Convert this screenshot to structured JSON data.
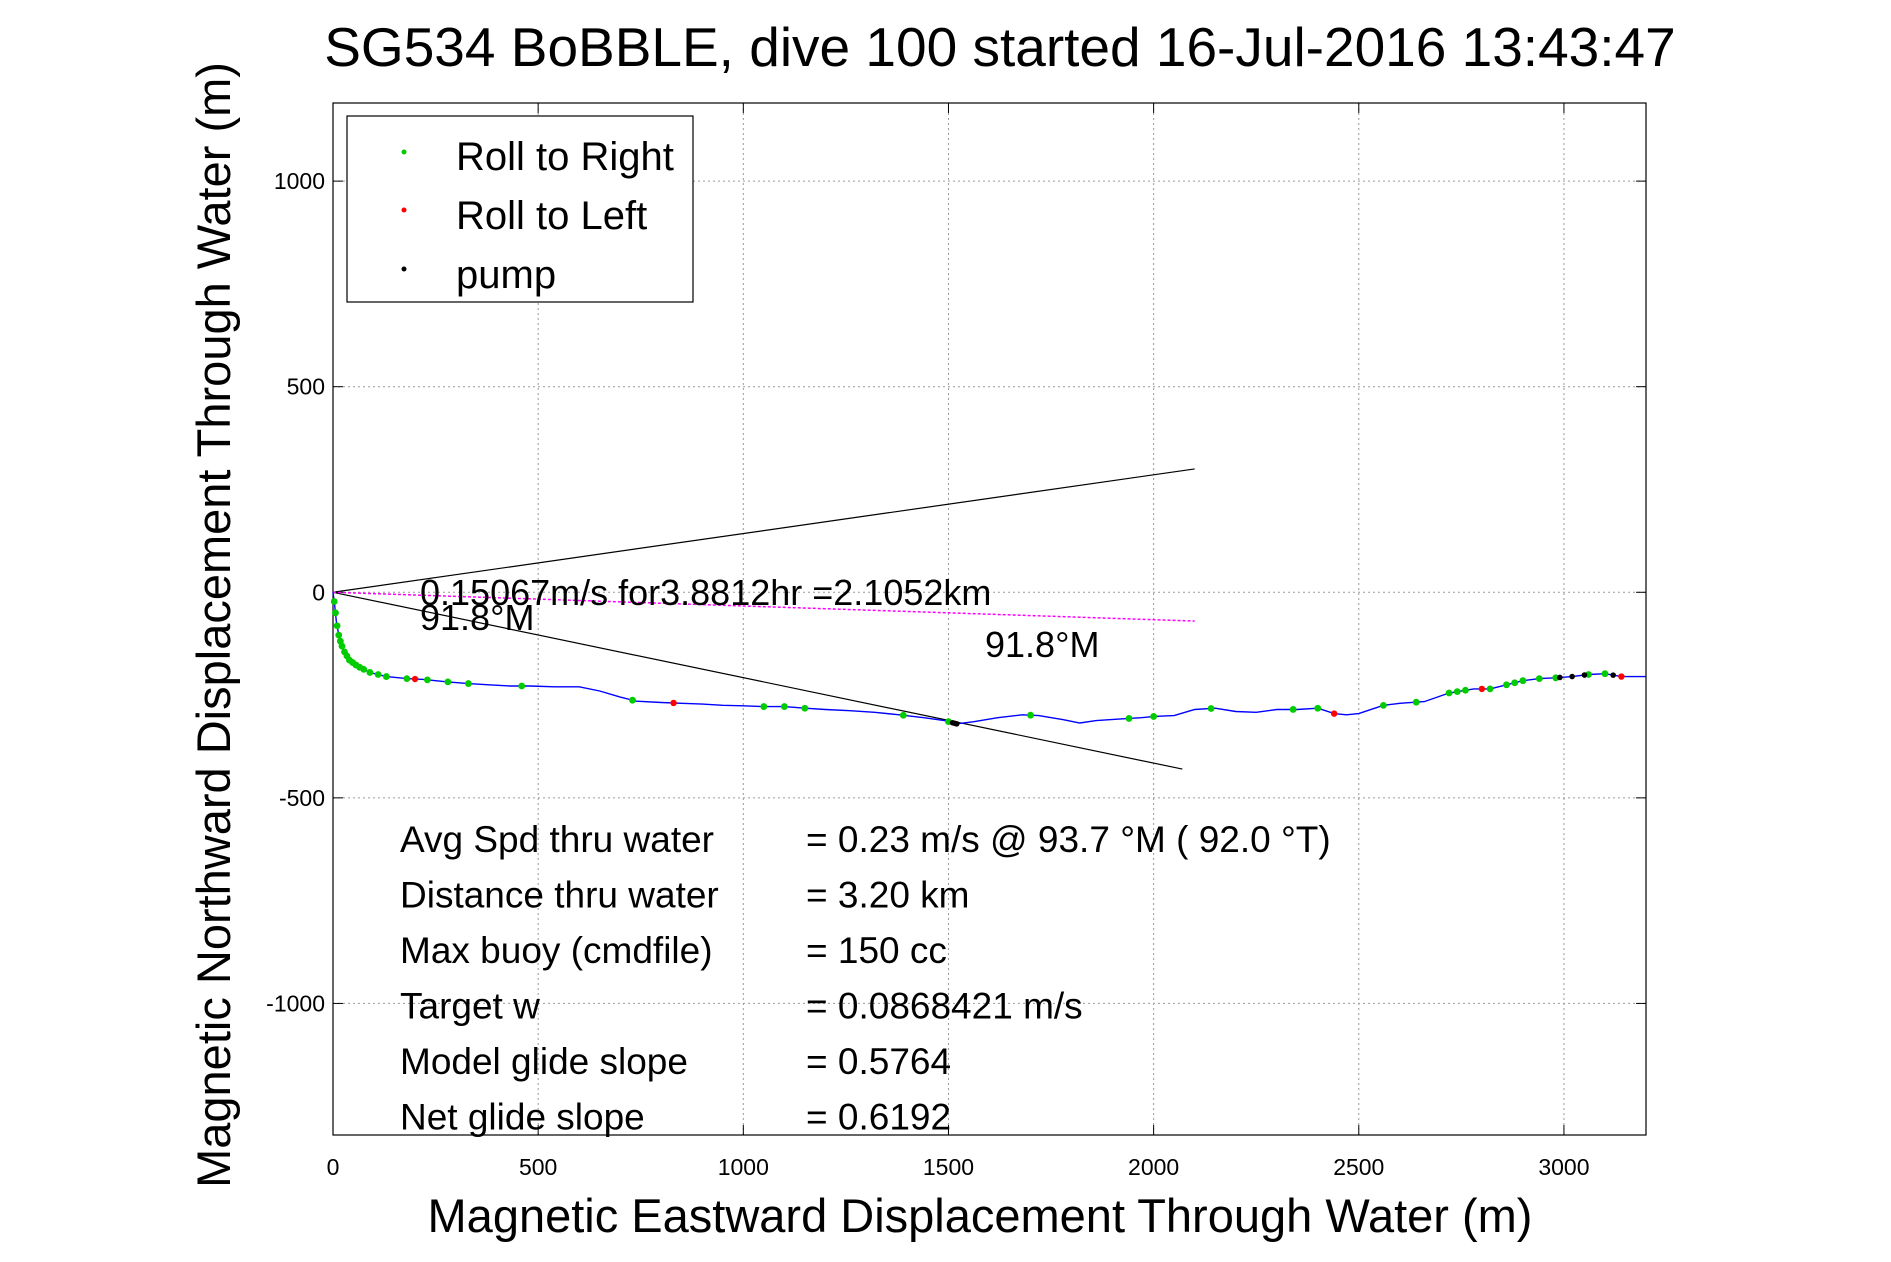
{
  "chart_data": {
    "type": "line",
    "title": "SG534 BoBBLE, dive 100 started 16-Jul-2016 13:43:47",
    "xlabel": "Magnetic Eastward Displacement Through Water (m)",
    "ylabel": "Magnetic Northward Displacement Through Water (m)",
    "xlim": [
      0,
      3200
    ],
    "ylim": [
      -1320,
      1190
    ],
    "x_ticks": [
      0,
      500,
      1000,
      1500,
      2000,
      2500,
      3000
    ],
    "y_ticks": [
      1000,
      500,
      0,
      -500,
      -1000
    ],
    "grid": true,
    "legend_position": "top-left",
    "legend": [
      {
        "label": "Roll to Right",
        "color": "#00cc00"
      },
      {
        "label": "Roll to Left",
        "color": "#ff0000"
      },
      {
        "label": "pump",
        "color": "#000000"
      }
    ],
    "track": {
      "color": "#0000ff",
      "points": [
        [
          0,
          0
        ],
        [
          4,
          -30
        ],
        [
          8,
          -70
        ],
        [
          15,
          -110
        ],
        [
          25,
          -140
        ],
        [
          40,
          -165
        ],
        [
          60,
          -180
        ],
        [
          90,
          -195
        ],
        [
          130,
          -205
        ],
        [
          180,
          -210
        ],
        [
          220,
          -212
        ],
        [
          280,
          -218
        ],
        [
          330,
          -222
        ],
        [
          380,
          -225
        ],
        [
          430,
          -228
        ],
        [
          480,
          -228
        ],
        [
          540,
          -230
        ],
        [
          600,
          -230
        ],
        [
          650,
          -240
        ],
        [
          700,
          -255
        ],
        [
          740,
          -265
        ],
        [
          800,
          -268
        ],
        [
          850,
          -270
        ],
        [
          900,
          -272
        ],
        [
          950,
          -275
        ],
        [
          1000,
          -276
        ],
        [
          1050,
          -278
        ],
        [
          1100,
          -278
        ],
        [
          1150,
          -282
        ],
        [
          1200,
          -285
        ],
        [
          1260,
          -288
        ],
        [
          1320,
          -292
        ],
        [
          1380,
          -298
        ],
        [
          1440,
          -305
        ],
        [
          1490,
          -312
        ],
        [
          1520,
          -320
        ],
        [
          1560,
          -315
        ],
        [
          1620,
          -305
        ],
        [
          1680,
          -298
        ],
        [
          1720,
          -300
        ],
        [
          1780,
          -310
        ],
        [
          1820,
          -318
        ],
        [
          1860,
          -312
        ],
        [
          1920,
          -308
        ],
        [
          1970,
          -305
        ],
        [
          2000,
          -302
        ],
        [
          2050,
          -300
        ],
        [
          2100,
          -285
        ],
        [
          2150,
          -282
        ],
        [
          2200,
          -290
        ],
        [
          2250,
          -292
        ],
        [
          2300,
          -285
        ],
        [
          2350,
          -285
        ],
        [
          2400,
          -282
        ],
        [
          2440,
          -295
        ],
        [
          2470,
          -298
        ],
        [
          2500,
          -295
        ],
        [
          2560,
          -275
        ],
        [
          2600,
          -270
        ],
        [
          2660,
          -266
        ],
        [
          2720,
          -245
        ],
        [
          2780,
          -235
        ],
        [
          2820,
          -235
        ],
        [
          2860,
          -225
        ],
        [
          2900,
          -215
        ],
        [
          2940,
          -210
        ],
        [
          2980,
          -208
        ],
        [
          3020,
          -205
        ],
        [
          3060,
          -200
        ],
        [
          3100,
          -198
        ],
        [
          3140,
          -205
        ],
        [
          3200,
          -205
        ]
      ]
    },
    "roll_right_x": [
      3,
      6,
      10,
      14,
      18,
      22,
      28,
      34,
      40,
      48,
      56,
      65,
      75,
      90,
      110,
      130,
      180,
      230,
      280,
      330,
      460,
      730,
      1050,
      1100,
      1150,
      1390,
      1500,
      1700,
      1940,
      2000,
      2140,
      2340,
      2400,
      2560,
      2640,
      2720,
      2740,
      2760,
      2820,
      2860,
      2880,
      2900,
      2940,
      2980,
      3060,
      3100
    ],
    "roll_left_x": [
      200,
      830,
      2440,
      2800,
      3140
    ],
    "pump_x": [
      1510,
      1515,
      1520,
      2990,
      3020,
      3050,
      3120
    ],
    "wind_line": [
      [
        0,
        0
      ],
      [
        2100,
        -70
      ]
    ],
    "heading_lines": [
      [
        [
          0,
          0
        ],
        [
          2100,
          300
        ]
      ],
      [
        [
          0,
          0
        ],
        [
          2070,
          -430
        ]
      ]
    ],
    "annotations": {
      "current": "0.15067m/s for3.8812hr =2.1052km",
      "heading_1": "91.8°M",
      "heading_2": "91.8°M"
    },
    "stats": [
      {
        "label": "Avg Spd thru water",
        "value": "=  0.23 m/s @  93.7 °M ( 92.0 °T)"
      },
      {
        "label": "Distance thru water",
        "value": "=  3.20 km"
      },
      {
        "label": "Max buoy (cmdfile)",
        "value": "= 150 cc"
      },
      {
        "label": "Target w",
        "value": "= 0.0868421 m/s"
      },
      {
        "label": "Model glide slope",
        "value": "= 0.5764"
      },
      {
        "label": "Net glide slope",
        "value": "= 0.6192"
      }
    ]
  }
}
